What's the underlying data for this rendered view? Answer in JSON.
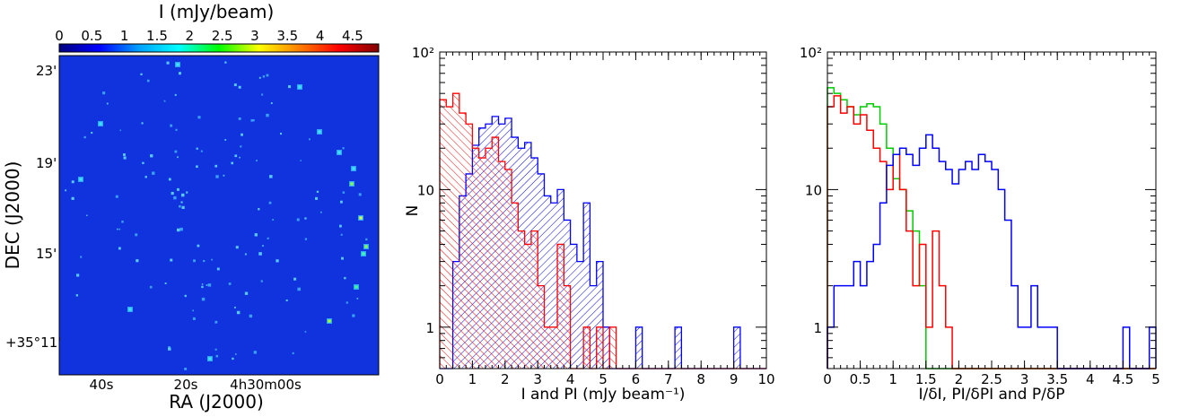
{
  "chart_data": [
    {
      "type": "heatmap",
      "colorbar_label": "I (mJy/beam)",
      "colorbar_ticks": [
        "0",
        "0.5",
        "1",
        "1.5",
        "2",
        "2.5",
        "3",
        "3.5",
        "4",
        "4.5"
      ],
      "zlim": [
        0,
        4.9
      ],
      "colormap": [
        "#000080",
        "#0000ff",
        "#00a0ff",
        "#00ffff",
        "#00ff00",
        "#ffff00",
        "#ff8000",
        "#ff0000",
        "#800000"
      ],
      "background_color": "#1133dd",
      "xlabel": "RA (J2000)",
      "ylabel": "DEC (J2000)",
      "x_ticks": [
        "40s",
        "20s",
        "4h30m00s"
      ],
      "y_ticks": [
        "23'",
        "19'",
        "15'",
        "+35°11'"
      ]
    },
    {
      "type": "bar",
      "log_y": true,
      "xlabel": "I and PI (mJy beam⁻¹)",
      "ylabel": "N",
      "xlim": [
        0,
        10
      ],
      "ylim": [
        0.5,
        100
      ],
      "x_ticks": [
        "0",
        "1",
        "2",
        "3",
        "4",
        "5",
        "6",
        "7",
        "8",
        "9",
        "10"
      ],
      "y_ticks": [
        "10²",
        "10",
        "1"
      ],
      "bin_width": 0.2,
      "series": [
        {
          "color": "#0000ff",
          "hatch": "diagonal",
          "values": [
            0,
            0,
            3,
            9,
            13,
            21,
            28,
            30,
            34,
            30,
            33,
            24,
            20,
            22,
            17,
            13,
            9,
            8,
            10,
            6,
            4,
            3,
            8,
            2,
            3,
            1,
            0,
            0,
            0,
            0,
            1,
            0,
            0,
            0,
            0,
            0,
            1,
            0,
            0,
            0,
            0,
            0,
            0,
            0,
            0,
            1,
            0,
            0,
            0,
            0
          ]
        },
        {
          "color": "#ff0000",
          "hatch": "diagonal",
          "values": [
            45,
            40,
            50,
            36,
            30,
            20,
            17,
            20,
            24,
            16,
            14,
            8,
            5,
            4,
            5,
            2,
            1,
            1,
            4,
            2,
            0,
            0,
            1,
            0,
            1,
            0,
            1,
            0,
            0,
            0,
            0,
            0,
            0,
            0,
            0,
            0,
            0,
            0,
            0,
            0,
            0,
            0,
            0,
            0,
            0,
            0,
            0,
            0,
            0,
            0
          ]
        }
      ]
    },
    {
      "type": "line",
      "log_y": true,
      "xlabel": "I/δI, PI/δPI and P/δP",
      "ylabel": "",
      "xlim": [
        0,
        5
      ],
      "ylim": [
        0.5,
        100
      ],
      "x_ticks": [
        "0",
        "0.5",
        "1",
        "1.5",
        "2",
        "2.5",
        "3",
        "3.5",
        "4",
        "4.5",
        "5"
      ],
      "y_ticks": [
        "10²",
        "10",
        "1"
      ],
      "bin_width": 0.1,
      "series": [
        {
          "color": "#00cc00",
          "values": [
            55,
            50,
            45,
            40,
            35,
            40,
            42,
            40,
            30,
            20,
            12,
            10,
            7,
            5,
            2,
            0,
            0,
            0,
            0,
            0,
            0,
            0,
            0,
            0,
            0,
            0,
            0,
            0,
            0,
            0,
            0,
            0,
            0,
            0,
            0,
            0,
            0,
            0,
            0,
            0,
            0,
            0,
            0,
            0,
            0,
            0,
            0,
            0,
            0,
            0
          ]
        },
        {
          "color": "#ff0000",
          "values": [
            40,
            48,
            36,
            40,
            30,
            35,
            27,
            20,
            16,
            10,
            18,
            10,
            5,
            2,
            4,
            1,
            5,
            2,
            1,
            0,
            0,
            0,
            0,
            0,
            0,
            0,
            0,
            0,
            0,
            0,
            0,
            0,
            0,
            0,
            0,
            0,
            0,
            0,
            0,
            0,
            0,
            0,
            0,
            0,
            0,
            0,
            0,
            0,
            0,
            0
          ]
        },
        {
          "color": "#0000ff",
          "values": [
            1,
            2,
            2,
            2,
            3,
            2,
            3,
            4,
            8,
            15,
            18,
            20,
            18,
            15,
            20,
            25,
            20,
            16,
            14,
            11,
            14,
            16,
            14,
            18,
            16,
            14,
            10,
            6,
            2,
            1,
            1,
            2,
            1,
            1,
            1,
            0,
            0,
            0,
            0,
            0,
            0,
            0,
            0,
            0,
            0,
            1,
            0,
            0,
            0,
            1
          ]
        }
      ]
    }
  ]
}
